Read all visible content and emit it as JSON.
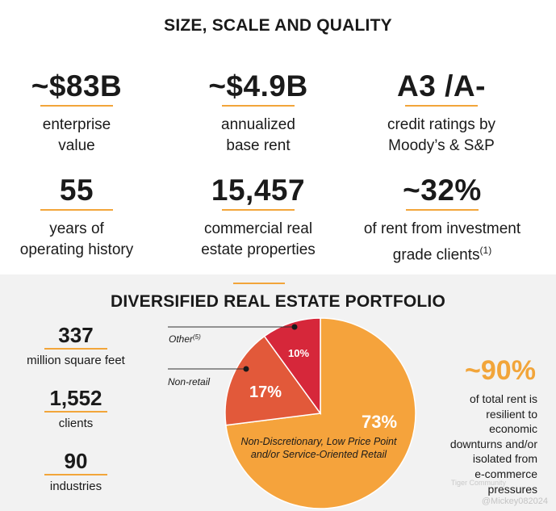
{
  "top_section": {
    "title": "SIZE, SCALE AND QUALITY",
    "stats": [
      {
        "value": "~$83B",
        "label_lines": [
          "enterprise",
          "value"
        ]
      },
      {
        "value": "~$4.9B",
        "label_lines": [
          "annualized",
          "base rent"
        ]
      },
      {
        "value": "A3 /A-",
        "label_lines": [
          "credit ratings by",
          "Moody’s & S&P"
        ]
      },
      {
        "value": "55",
        "label_lines": [
          "years of",
          "operating history"
        ]
      },
      {
        "value": "15,457",
        "label_lines": [
          "commercial real",
          "estate properties"
        ]
      },
      {
        "value": "~32%",
        "label_lines": [
          "of rent from investment",
          "grade clients"
        ],
        "footnote": "(1)"
      }
    ]
  },
  "bottom_section": {
    "title": "DIVERSIFIED REAL ESTATE PORTFOLIO",
    "mini_stats": [
      {
        "value": "337",
        "label": "million square feet"
      },
      {
        "value": "1,552",
        "label": "clients"
      },
      {
        "value": "90",
        "label": "industries"
      }
    ],
    "highlight": {
      "value": "~90%",
      "text_lines": [
        "of total rent is",
        "resilient to",
        "economic",
        "downturns and/or",
        "isolated from",
        "e-commerce",
        "pressures"
      ]
    },
    "watermark": {
      "line1": "Tiger Community",
      "line2": "@Mickey082024"
    }
  },
  "chart_data": {
    "type": "pie",
    "title": "DIVERSIFIED REAL ESTATE PORTFOLIO",
    "slices": [
      {
        "label": "Non-Discretionary, Low Price Point and/or Service-Oriented Retail",
        "label_lines": [
          "Non-Discretionary, Low Price Point",
          "and/or Service-Oriented Retail"
        ],
        "value": 73,
        "display": "73%",
        "color": "#f5a33c"
      },
      {
        "label": "Non-retail",
        "value": 17,
        "display": "17%",
        "color": "#e2593a"
      },
      {
        "label": "Other",
        "footnote": "(5)",
        "value": 10,
        "display": "10%",
        "color": "#d6273a"
      }
    ]
  }
}
